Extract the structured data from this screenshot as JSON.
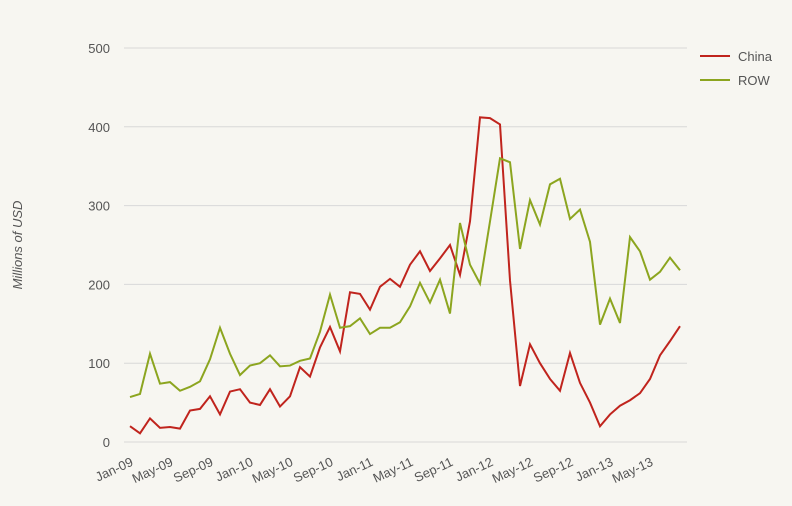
{
  "chart_data": {
    "type": "line",
    "ylabel": "Millions of USD",
    "categories": [
      "Jan-09",
      null,
      null,
      null,
      "May-09",
      null,
      null,
      null,
      "Sep-09",
      null,
      null,
      null,
      "Jan-10",
      null,
      null,
      null,
      "May-10",
      null,
      null,
      null,
      "Sep-10",
      null,
      null,
      null,
      "Jan-11",
      null,
      null,
      null,
      "May-11",
      null,
      null,
      null,
      "Sep-11",
      null,
      null,
      null,
      "Jan-12",
      null,
      null,
      null,
      "May-12",
      null,
      null,
      null,
      "Sep-12",
      null,
      null,
      null,
      "Jan-13",
      null,
      null,
      null,
      "May-13",
      null,
      null,
      null
    ],
    "series": [
      {
        "name": "China",
        "color": "#c0241d",
        "values": [
          20,
          11,
          30,
          18,
          19,
          17,
          40,
          42,
          58,
          35,
          64,
          67,
          50,
          47,
          67,
          45,
          58,
          95,
          83,
          120,
          146,
          115,
          190,
          188,
          168,
          197,
          207,
          197,
          225,
          242,
          217,
          233,
          250,
          212,
          280,
          412,
          411,
          403,
          205,
          71,
          124,
          100,
          80,
          65,
          113,
          75,
          50,
          20,
          35,
          46,
          53,
          62,
          80,
          110,
          128,
          147
        ]
      },
      {
        "name": "ROW",
        "color": "#8ca51f",
        "values": [
          57,
          61,
          112,
          74,
          76,
          65,
          70,
          77,
          105,
          145,
          112,
          85,
          97,
          100,
          110,
          96,
          97,
          103,
          106,
          140,
          187,
          145,
          147,
          157,
          137,
          145,
          145,
          152,
          172,
          202,
          177,
          206,
          163,
          278,
          225,
          201,
          280,
          360,
          355,
          245,
          307,
          276,
          327,
          334,
          283,
          295,
          254,
          149,
          182,
          151,
          260,
          242,
          206,
          216,
          234,
          218
        ]
      }
    ],
    "ylim": [
      0,
      500
    ],
    "yticks": [
      0,
      100,
      200,
      300,
      400,
      500
    ],
    "grid": true,
    "legend": "top-right"
  }
}
